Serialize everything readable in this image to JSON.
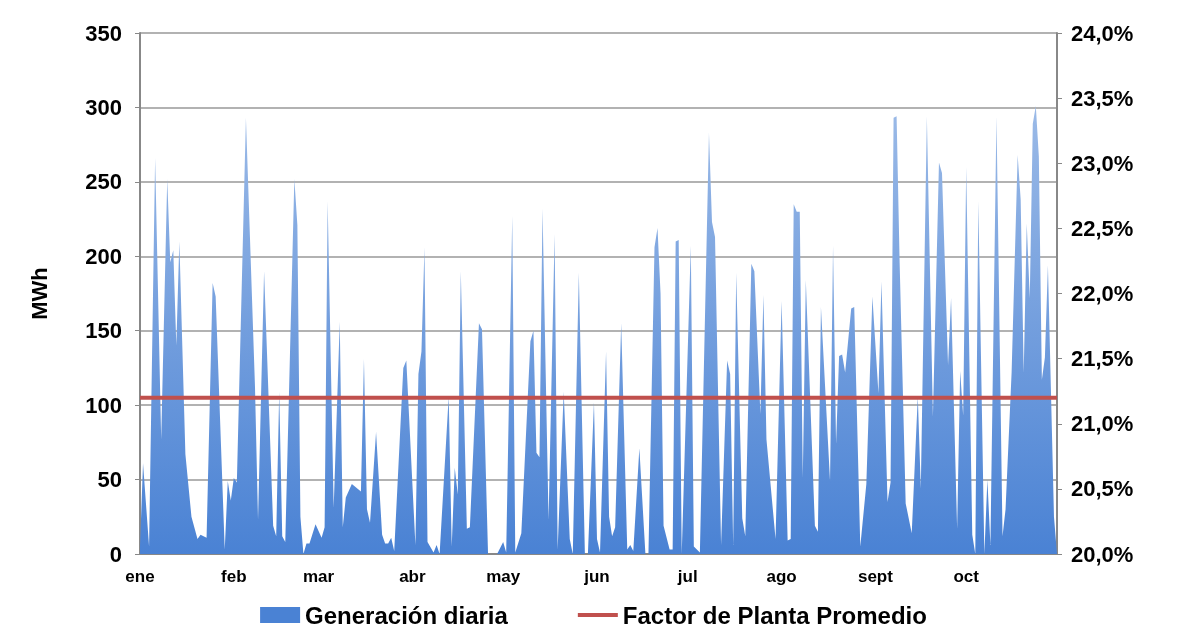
{
  "chart_data": {
    "type": "area",
    "ylabel": "MWh",
    "xlim": [
      "--01-01",
      "--10-31"
    ],
    "xticks": [
      {
        "value": "--01-01",
        "label": "ene"
      },
      {
        "value": "--02-01",
        "label": "feb"
      },
      {
        "value": "--03-01",
        "label": "mar"
      },
      {
        "value": "--04-01",
        "label": "abr"
      },
      {
        "value": "--05-01",
        "label": "may"
      },
      {
        "value": "--06-01",
        "label": "jun"
      },
      {
        "value": "--07-01",
        "label": "jul"
      },
      {
        "value": "--08-01",
        "label": "ago"
      },
      {
        "value": "--09-01",
        "label": "sept"
      },
      {
        "value": "--10-01",
        "label": "oct"
      }
    ],
    "ylim": [
      0,
      350
    ],
    "yticks": [
      0,
      50,
      100,
      150,
      200,
      250,
      300,
      350
    ],
    "y2lim": [
      20,
      24
    ],
    "y2ticks": [
      {
        "value": 20,
        "label": "20,0%"
      },
      {
        "value": 20.5,
        "label": "20,5%"
      },
      {
        "value": 21,
        "label": "21,0%"
      },
      {
        "value": 21.5,
        "label": "21,5%"
      },
      {
        "value": 22,
        "label": "22,0%"
      },
      {
        "value": 22.5,
        "label": "22,5%"
      },
      {
        "value": 23,
        "label": "23,0%"
      },
      {
        "value": 23.5,
        "label": "23,5%"
      },
      {
        "value": 24,
        "label": "24,0%"
      }
    ],
    "grid": "y",
    "legend": "bottom",
    "series": [
      {
        "name": "Generación diaria",
        "color": "#4a82d4",
        "x": [
          "--01-01",
          "--01-02",
          "--01-04",
          "--01-06",
          "--01-08",
          "--01-10",
          "--01-11",
          "--01-12",
          "--01-13",
          "--01-14",
          "--01-16",
          "--01-18",
          "--01-20",
          "--01-21",
          "--01-23",
          "--01-25",
          "--01-26",
          "--01-29",
          "--01-30",
          "--01-31",
          "--02-01",
          "--02-02",
          "--02-05",
          "--02-08",
          "--02-09",
          "--02-11",
          "--02-14",
          "--02-15",
          "--02-16",
          "--02-17",
          "--02-18",
          "--02-21",
          "--02-22",
          "--02-23",
          "--02-24",
          "--02-25",
          "--02-26",
          "--02-28",
          "--03-02",
          "--03-03",
          "--03-04",
          "--03-06",
          "--03-08",
          "--03-09",
          "--03-10",
          "--03-12",
          "--03-15",
          "--03-16",
          "--03-17",
          "--03-18",
          "--03-20",
          "--03-22",
          "--03-23",
          "--03-24",
          "--03-25",
          "--03-26",
          "--03-29",
          "--03-30",
          "--04-02",
          "--04-03",
          "--04-04",
          "--04-05",
          "--04-06",
          "--04-08",
          "--04-09",
          "--04-10",
          "--04-13",
          "--04-14",
          "--04-15",
          "--04-16",
          "--04-17",
          "--04-19",
          "--04-20",
          "--04-23",
          "--04-24",
          "--04-26",
          "--04-29",
          "--05-01",
          "--05-02",
          "--05-04",
          "--05-05",
          "--05-07",
          "--05-10",
          "--05-11",
          "--05-12",
          "--05-13",
          "--05-14",
          "--05-16",
          "--05-18",
          "--05-19",
          "--05-21",
          "--05-23",
          "--05-24",
          "--05-26",
          "--05-28",
          "--05-29",
          "--05-31",
          "--06-01",
          "--06-02",
          "--06-04",
          "--06-05",
          "--06-06",
          "--06-07",
          "--06-09",
          "--06-11",
          "--06-12",
          "--06-13",
          "--06-15",
          "--06-17",
          "--06-18",
          "--06-20",
          "--06-21",
          "--06-22",
          "--06-23",
          "--06-25",
          "--06-26",
          "--06-27",
          "--06-28",
          "--06-29",
          "--07-02",
          "--07-03",
          "--07-04",
          "--07-05",
          "--07-08",
          "--07-09",
          "--07-10",
          "--07-12",
          "--07-14",
          "--07-15",
          "--07-16",
          "--07-17",
          "--07-19",
          "--07-20",
          "--07-22",
          "--07-23",
          "--07-25",
          "--07-26",
          "--07-27",
          "--07-30",
          "--08-01",
          "--08-03",
          "--08-04",
          "--08-05",
          "--08-06",
          "--08-07",
          "--08-08",
          "--08-09",
          "--08-12",
          "--08-13",
          "--08-14",
          "--08-17",
          "--08-18",
          "--08-19",
          "--08-20",
          "--08-21",
          "--08-22",
          "--08-24",
          "--08-25",
          "--08-27",
          "--08-29",
          "--08-31",
          "--09-02",
          "--09-03",
          "--09-05",
          "--09-06",
          "--09-07",
          "--09-08",
          "--09-09",
          "--09-11",
          "--09-13",
          "--09-15",
          "--09-16",
          "--09-18",
          "--09-20",
          "--09-22",
          "--09-23",
          "--09-25",
          "--09-26",
          "--09-28",
          "--09-29",
          "--09-30",
          "--10-01",
          "--10-03",
          "--10-04",
          "--10-05",
          "--10-07",
          "--10-08",
          "--10-09",
          "--10-11",
          "--10-13",
          "--10-14",
          "--10-16",
          "--10-18",
          "--10-19",
          "--10-20",
          "--10-21",
          "--10-22",
          "--10-23",
          "--10-24",
          "--10-25",
          "--10-26",
          "--10-27",
          "--10-28",
          "--10-30",
          "--10-31"
        ],
        "values": [
          5,
          61,
          5,
          266,
          77,
          252,
          196,
          204,
          140,
          210,
          67,
          25,
          10,
          13,
          11,
          182,
          173,
          3,
          49,
          36,
          51,
          48,
          293,
          112,
          23,
          190,
          19,
          12,
          109,
          12,
          8,
          252,
          221,
          25,
          0,
          7,
          7,
          20,
          11,
          18,
          237,
          31,
          156,
          18,
          38,
          47,
          42,
          131,
          30,
          21,
          82,
          13,
          7,
          7,
          11,
          2,
          125,
          130,
          6,
          121,
          136,
          206,
          8,
          1,
          6,
          0,
          106,
          5,
          58,
          40,
          190,
          17,
          18,
          155,
          151,
          0,
          0,
          8,
          1,
          227,
          1,
          14,
          143,
          150,
          68,
          65,
          232,
          23,
          215,
          3,
          109,
          10,
          0,
          189,
          0,
          0,
          102,
          10,
          1,
          136,
          25,
          12,
          18,
          155,
          3,
          6,
          2,
          71,
          0,
          0,
          206,
          219,
          175,
          19,
          3,
          3,
          210,
          211,
          0,
          207,
          5,
          3,
          1,
          283,
          223,
          213,
          6,
          130,
          121,
          6,
          189,
          24,
          12,
          195,
          190,
          94,
          174,
          77,
          10,
          170,
          9,
          10,
          235,
          230,
          230,
          51,
          184,
          19,
          15,
          166,
          49,
          207,
          74,
          133,
          134,
          122,
          165,
          166,
          5,
          47,
          173,
          108,
          183,
          35,
          48,
          293,
          294,
          196,
          34,
          14,
          106,
          44,
          294,
          92,
          263,
          256,
          127,
          172,
          17,
          123,
          93,
          260,
          13,
          0,
          237,
          0,
          50,
          6,
          294,
          12,
          30,
          122,
          268,
          238,
          122,
          222,
          172,
          289,
          301,
          267,
          117,
          132,
          194,
          25,
          0
        ]
      },
      {
        "name": "Factor de Planta Promedio",
        "type": "line",
        "axis": "y2",
        "color": "#c0504d",
        "x": [
          "--01-01",
          "--10-31"
        ],
        "values": [
          21.2,
          21.2
        ]
      }
    ]
  }
}
